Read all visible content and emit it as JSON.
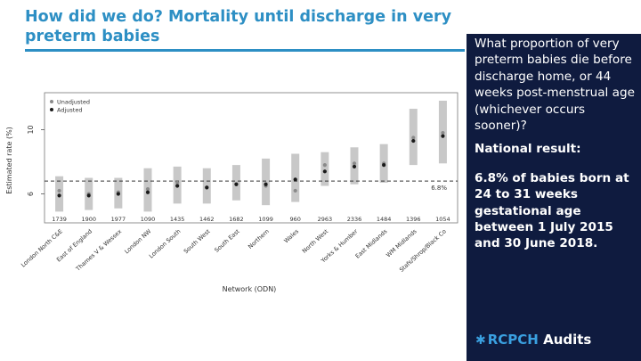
{
  "title": "How did we do? Mortality until discharge in very preterm babies",
  "panel": {
    "question": "What proportion of very preterm babies die before discharge home, or 44 weeks post-menstrual age (whichever occurs sooner)?",
    "national_label": "National result:",
    "result": "6.8% of babies born at 24 to 31 weeks gestational age between 1 July 2015 and 30 June 2018."
  },
  "logo": {
    "rcpch": "RCPCH",
    "audits": "Audits",
    "brand_color": "#3aa0e0"
  },
  "colors": {
    "title": "#2d8fc4",
    "panel_bg": "#0f1b3f",
    "bar": "#c8c8c8",
    "adjusted": "#1a1a1a",
    "unadjusted": "#8a8a8a"
  },
  "chart_data": {
    "type": "scatter",
    "title": "",
    "xlabel": "Network (ODN)",
    "ylabel": "Estimated rate (%)",
    "ylim": [
      4.2,
      12.3
    ],
    "yticks": [
      6,
      10
    ],
    "reference_line": {
      "value": 6.8,
      "label": "6.8%",
      "style": "dashed"
    },
    "legend": [
      "Unadjusted",
      "Adjusted"
    ],
    "legend_position": "top-left",
    "categories": [
      "London North C&E",
      "East of England",
      "Thames V & Wessex",
      "London NW",
      "London South",
      "South West",
      "South East",
      "Northern",
      "Wales",
      "North West",
      "Yorks & Humber",
      "East Midlands",
      "WM Midlands",
      "Stafs/Shrop/Black Co"
    ],
    "counts": [
      1739,
      1900,
      1977,
      1090,
      1435,
      1462,
      1682,
      1099,
      960,
      2963,
      2336,
      1484,
      1396,
      1054
    ],
    "series": [
      {
        "name": "Adjusted",
        "values": [
          5.9,
          5.9,
          6.0,
          6.1,
          6.5,
          6.4,
          6.6,
          6.6,
          6.9,
          7.4,
          7.7,
          7.8,
          9.3,
          9.6
        ]
      },
      {
        "name": "Unadjusted",
        "values": [
          6.2,
          6.0,
          6.1,
          6.3,
          6.7,
          6.4,
          6.6,
          6.5,
          6.2,
          7.8,
          7.9,
          7.9,
          9.5,
          9.8
        ]
      }
    ],
    "interval_low": [
      4.9,
      5.0,
      5.1,
      4.9,
      5.4,
      5.4,
      5.6,
      5.3,
      5.5,
      6.5,
      6.6,
      6.7,
      7.8,
      7.9
    ],
    "interval_high": [
      7.1,
      7.0,
      7.0,
      7.6,
      7.7,
      7.6,
      7.8,
      8.2,
      8.5,
      8.6,
      8.9,
      9.1,
      11.3,
      11.8
    ]
  }
}
